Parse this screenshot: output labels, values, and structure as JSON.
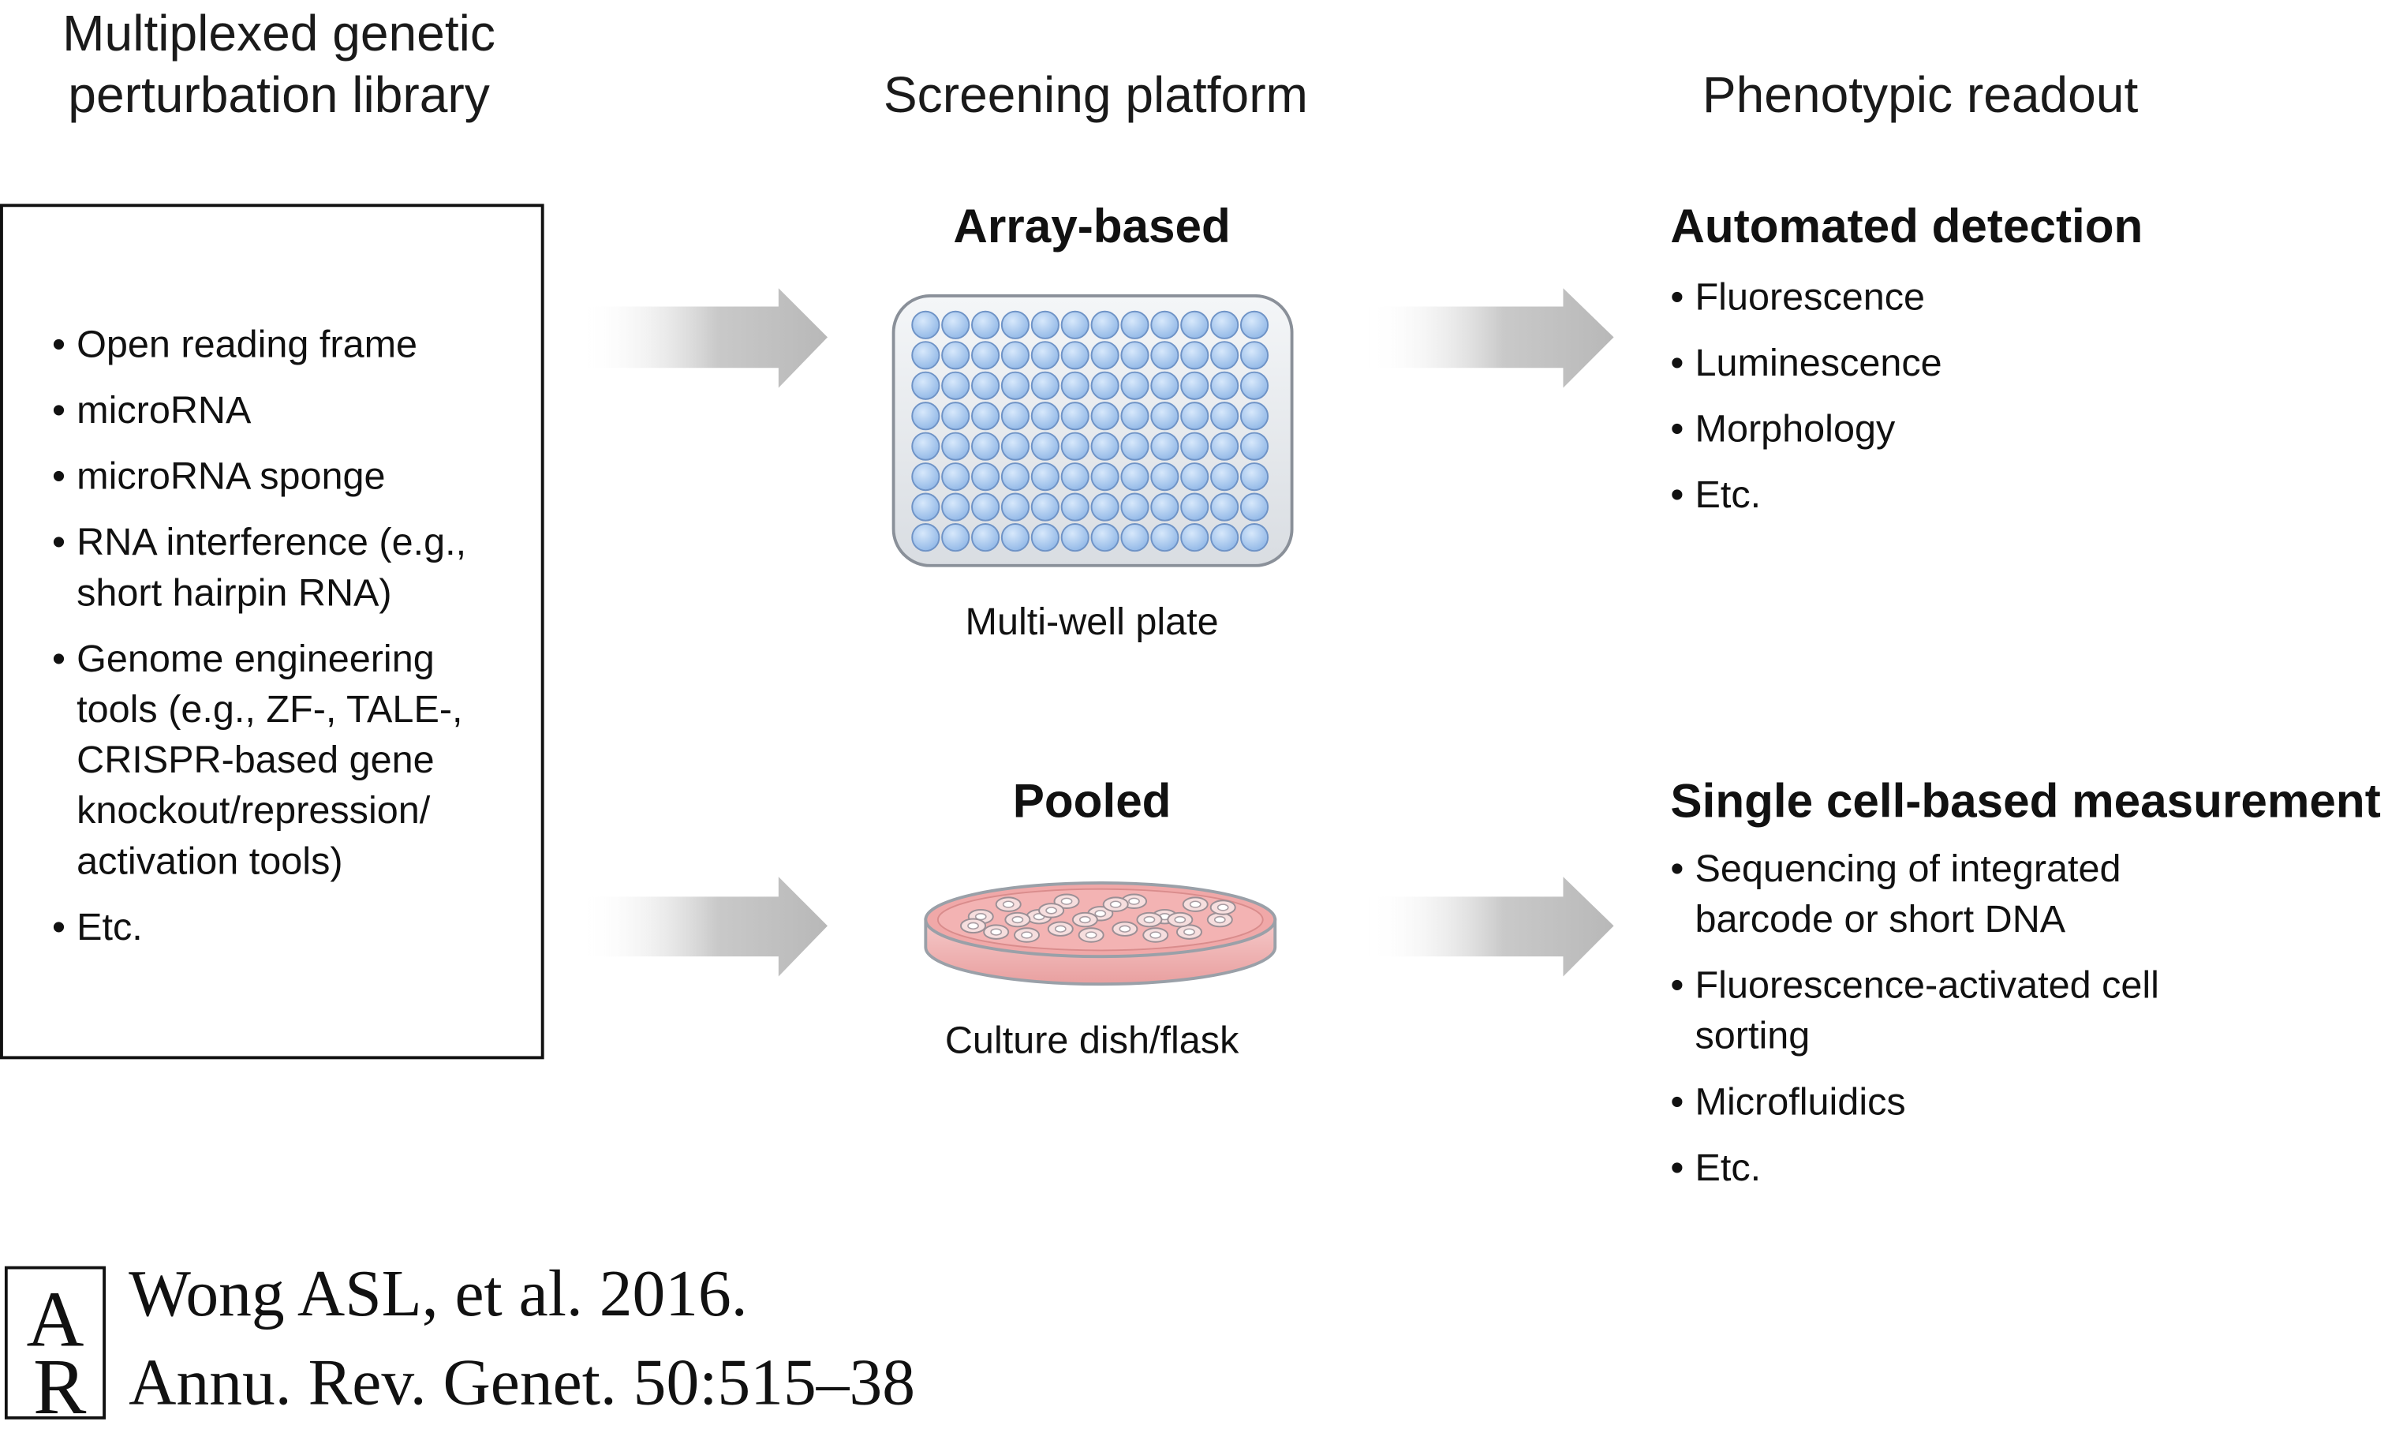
{
  "columns": {
    "library": {
      "title_line1": "Multiplexed genetic",
      "title_line2": "perturbation library",
      "items": [
        "Open reading frame",
        "microRNA",
        "microRNA sponge",
        "RNA interference (e.g., short hairpin RNA)",
        "Genome engineering tools (e.g., ZF-, TALE-, CRISPR-based gene knockout/repression/ activation tools)",
        "Etc."
      ]
    },
    "platform": {
      "title": "Screening platform",
      "array": {
        "heading": "Array-based",
        "caption": "Multi-well plate"
      },
      "pooled": {
        "heading": "Pooled",
        "caption": "Culture dish/flask"
      }
    },
    "readout": {
      "title": "Phenotypic readout",
      "automated": {
        "heading": "Automated detection",
        "items": [
          "Fluorescence",
          "Luminescence",
          "Morphology",
          "Etc."
        ]
      },
      "single_cell": {
        "heading": "Single cell-based measurement",
        "items": [
          "Sequencing of integrated barcode or short DNA",
          "Fluorescence-activated cell sorting",
          "Microfluidics",
          "Etc."
        ]
      }
    }
  },
  "citation": {
    "logo_letters": "AR",
    "line1": "Wong ASL, et al. 2016.",
    "line2": "Annu. Rev. Genet. 50:515–38"
  },
  "colors": {
    "well_fill": "#a9c9ee",
    "well_stroke": "#6f93c6",
    "plate_fill": "#eef0f3",
    "dish_medium": "#f0a8a8",
    "arrow_gray": "#bdbdbd"
  }
}
